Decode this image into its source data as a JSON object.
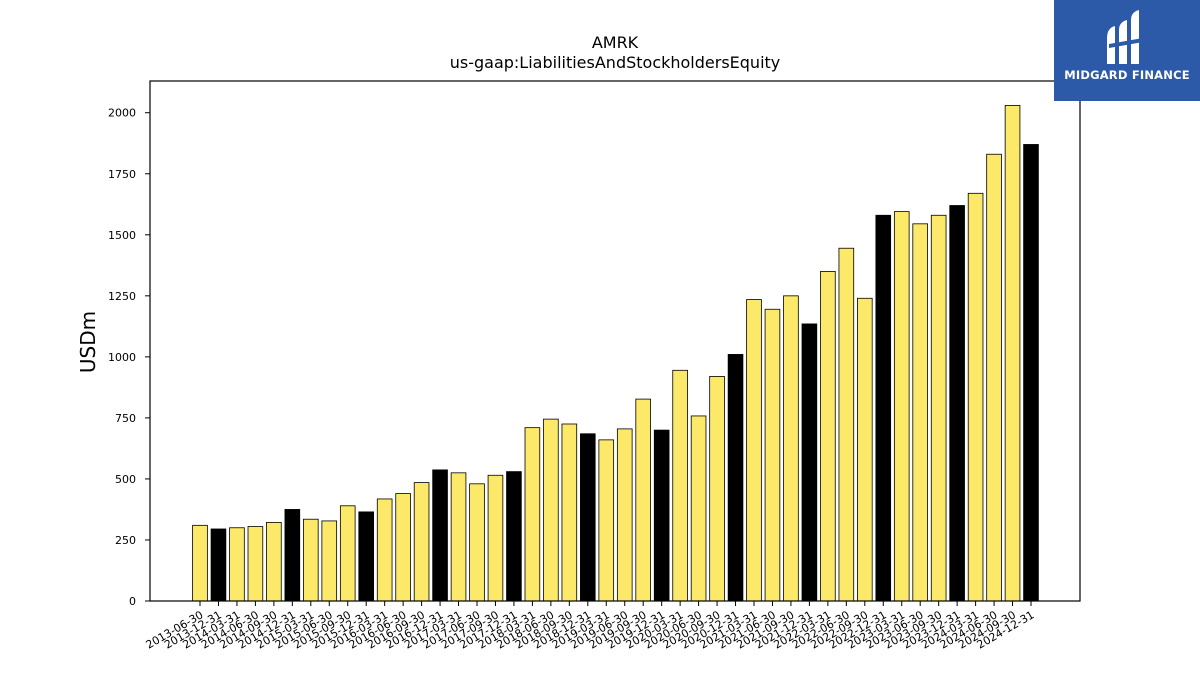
{
  "chart_data": {
    "type": "bar",
    "title": "AMRK",
    "subtitle": "us-gaap:LiabilitiesAndStockholdersEquity",
    "ylabel": "USDm",
    "xlabel": "",
    "ylim": [
      0,
      2130
    ],
    "yticks": [
      0,
      250,
      500,
      750,
      1000,
      1250,
      1500,
      1750,
      2000
    ],
    "grid": false,
    "colors": {
      "yellow": "#fce96a",
      "black": "#000000",
      "edge": "#000000"
    },
    "categories": [
      "2013-06-30",
      "2013-12-31",
      "2014-03-31",
      "2014-06-30",
      "2014-09-30",
      "2014-12-31",
      "2015-03-31",
      "2015-06-30",
      "2015-09-30",
      "2015-12-31",
      "2016-03-31",
      "2016-06-30",
      "2016-09-30",
      "2016-12-31",
      "2017-03-31",
      "2017-06-30",
      "2017-09-30",
      "2017-12-31",
      "2018-03-31",
      "2018-06-30",
      "2018-09-30",
      "2018-12-31",
      "2019-03-31",
      "2019-06-30",
      "2019-09-30",
      "2019-12-31",
      "2020-03-31",
      "2020-06-30",
      "2020-09-30",
      "2020-12-31",
      "2021-03-31",
      "2021-06-30",
      "2021-09-30",
      "2021-12-31",
      "2022-03-31",
      "2022-06-30",
      "2022-09-30",
      "2022-12-31",
      "2023-03-31",
      "2023-06-30",
      "2023-09-30",
      "2023-12-31",
      "2024-03-31",
      "2024-06-30",
      "2024-09-30",
      "2024-12-31"
    ],
    "values": [
      310,
      295,
      300,
      305,
      322,
      375,
      335,
      328,
      390,
      365,
      418,
      440,
      485,
      537,
      525,
      480,
      515,
      530,
      710,
      745,
      725,
      685,
      660,
      705,
      827,
      700,
      945,
      758,
      920,
      1010,
      1235,
      1195,
      1250,
      1135,
      1350,
      1445,
      1240,
      1580,
      1595,
      1545,
      1580,
      1620,
      1670,
      1830,
      2030,
      1870
    ],
    "bar_colors": [
      "yellow",
      "black",
      "yellow",
      "yellow",
      "yellow",
      "black",
      "yellow",
      "yellow",
      "yellow",
      "black",
      "yellow",
      "yellow",
      "yellow",
      "black",
      "yellow",
      "yellow",
      "yellow",
      "black",
      "yellow",
      "yellow",
      "yellow",
      "black",
      "yellow",
      "yellow",
      "yellow",
      "black",
      "yellow",
      "yellow",
      "yellow",
      "black",
      "yellow",
      "yellow",
      "yellow",
      "black",
      "yellow",
      "yellow",
      "yellow",
      "black",
      "yellow",
      "yellow",
      "yellow",
      "black",
      "yellow",
      "yellow",
      "yellow",
      "black"
    ]
  },
  "logo": {
    "text": "MIDGARD FINANCE",
    "background": "#2c5aa8"
  }
}
